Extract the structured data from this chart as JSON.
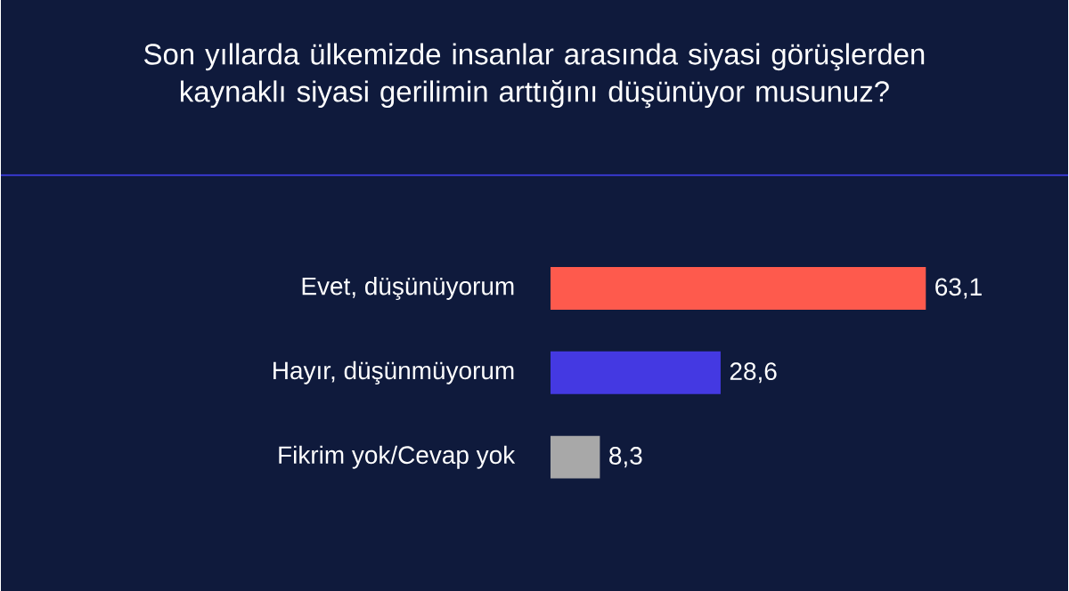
{
  "chart_data": {
    "type": "bar",
    "orientation": "horizontal",
    "title": "Son yıllarda ülkemizde insanlar arasında siyasi görüşlerden kaynaklı siyasi gerilimin arttığını düşünüyor musunuz?",
    "categories": [
      "Evet, düşünüyorum",
      "Hayır, düşünmüyorum",
      "Fikrim yok/Cevap yok"
    ],
    "values": [
      63.1,
      28.6,
      8.3
    ],
    "colors": [
      "#fe5a4d",
      "#4439e2",
      "#a8a8a8"
    ],
    "value_labels": [
      "63,1",
      "28,6",
      "8,3"
    ]
  }
}
